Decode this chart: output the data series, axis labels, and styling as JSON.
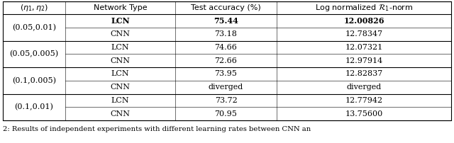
{
  "groups": [
    {
      "label": "(0.05,0.01)",
      "rows": [
        {
          "network": "LCN",
          "accuracy": "75.44",
          "norm": "12.00826",
          "bold": true
        },
        {
          "network": "CNN",
          "accuracy": "73.18",
          "norm": "12.78347",
          "bold": false
        }
      ]
    },
    {
      "label": "(0.05,0.005)",
      "rows": [
        {
          "network": "LCN",
          "accuracy": "74.66",
          "norm": "12.07321",
          "bold": false
        },
        {
          "network": "CNN",
          "accuracy": "72.66",
          "norm": "12.97914",
          "bold": false
        }
      ]
    },
    {
      "label": "(0.1,0.005)",
      "rows": [
        {
          "network": "LCN",
          "accuracy": "73.95",
          "norm": "12.82837",
          "bold": false
        },
        {
          "network": "CNN",
          "accuracy": "diverged",
          "norm": "diverged",
          "bold": false
        }
      ]
    },
    {
      "label": "(0.1,0.01)",
      "rows": [
        {
          "network": "LCN",
          "accuracy": "73.72",
          "norm": "12.77942",
          "bold": false
        },
        {
          "network": "CNN",
          "accuracy": "70.95",
          "norm": "13.75600",
          "bold": false
        }
      ]
    }
  ],
  "caption": "2: Results of independent experiments with different learning rates between CNN an",
  "fig_width": 6.4,
  "fig_height": 2.02,
  "font_size": 8.0,
  "caption_font_size": 7.2
}
